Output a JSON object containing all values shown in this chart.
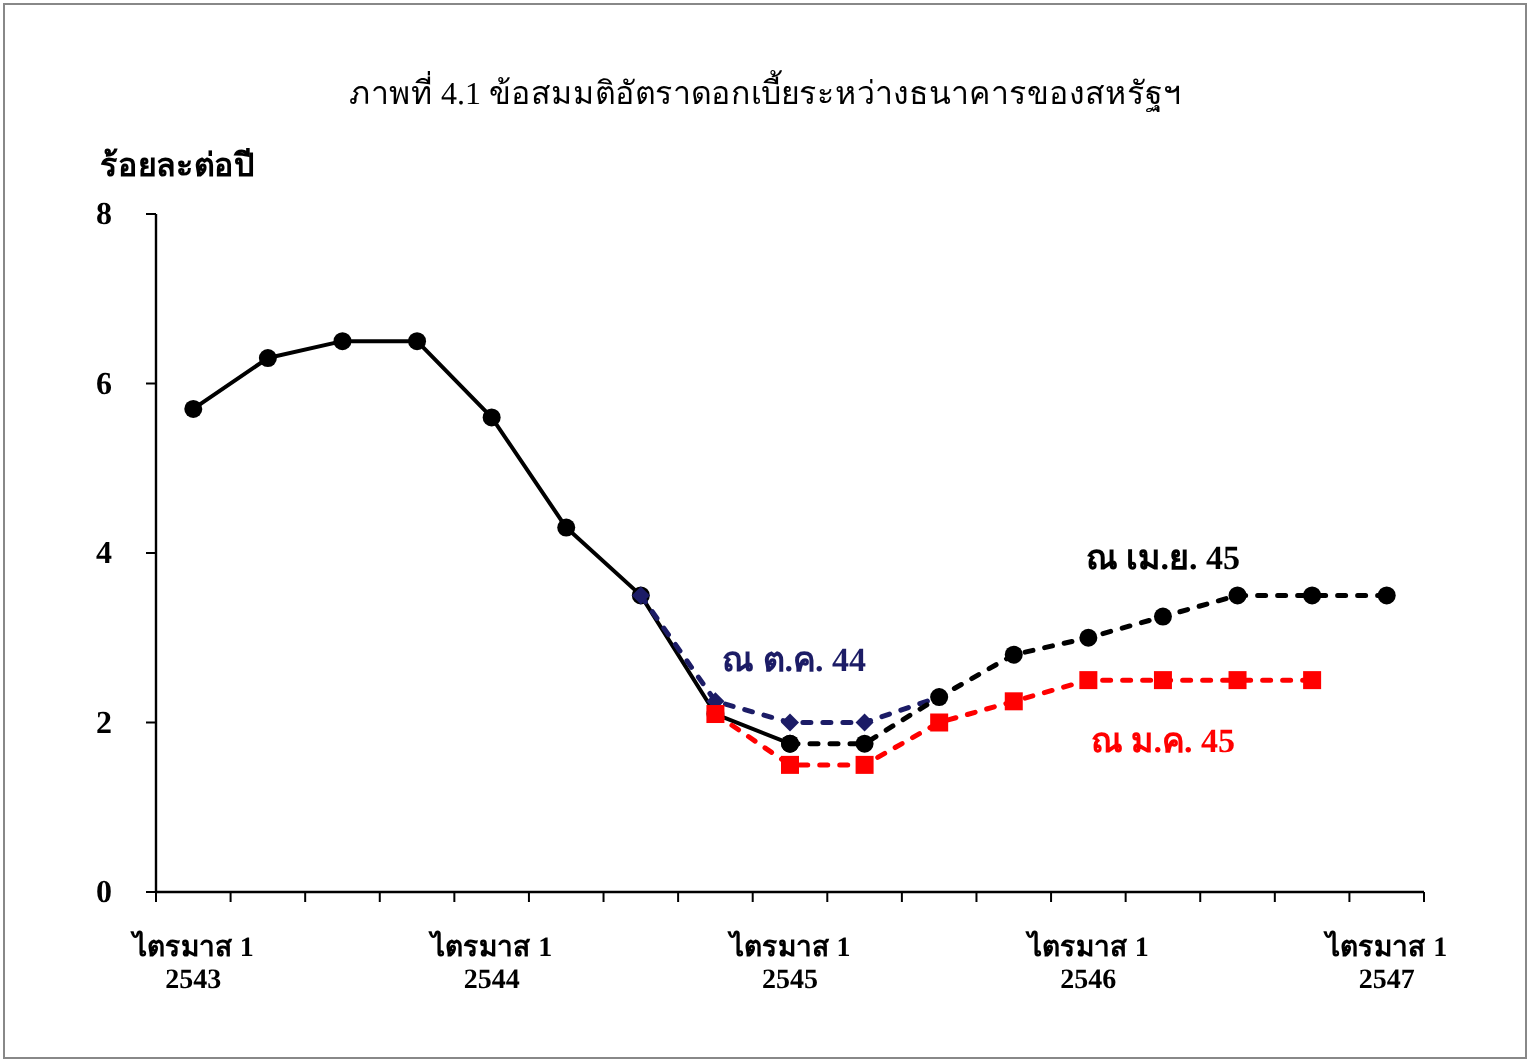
{
  "chart_data": {
    "type": "line",
    "title": "ภาพที่ 4.1  ข้อสมมติอัตราดอกเบี้ยระหว่างธนาคารของสหรัฐฯ",
    "ylabel": "ร้อยละต่อปี",
    "categories": [
      "ไตรมาส 1\n2543",
      null,
      null,
      null,
      "ไตรมาส 1\n2544",
      null,
      null,
      null,
      "ไตรมาส 1\n2545",
      null,
      null,
      null,
      "ไตรมาส 1\n2546",
      null,
      null,
      null,
      "ไตรมาส 1\n2547"
    ],
    "ylim": [
      0,
      8
    ],
    "yticks": [
      0,
      2,
      4,
      6,
      8
    ],
    "series": [
      {
        "color": "#000000",
        "marker": "circle",
        "line_style": "solid",
        "values": [
          5.7,
          6.3,
          6.5,
          6.5,
          5.6,
          4.3,
          3.5,
          2.1,
          1.75,
          null,
          null,
          null,
          null,
          null,
          null,
          null,
          null
        ]
      },
      {
        "name": "ณ ต.ค. 44",
        "color": "#1c1c66",
        "marker": "diamond",
        "line_style": "dotted",
        "values": [
          null,
          null,
          null,
          null,
          null,
          null,
          3.5,
          2.25,
          2.0,
          2.0,
          2.3,
          null,
          null,
          null,
          null,
          null,
          null
        ]
      },
      {
        "name": "ณ ม.ค. 45",
        "color": "#ff0000",
        "marker": "square",
        "line_style": "dotted",
        "values": [
          null,
          null,
          null,
          null,
          null,
          null,
          null,
          2.1,
          1.5,
          1.5,
          2.0,
          2.25,
          2.5,
          2.5,
          2.5,
          2.5,
          null
        ]
      },
      {
        "name": "ณ เม.ย. 45",
        "color": "#000000",
        "marker": "circle",
        "line_style": "dotted",
        "values": [
          null,
          null,
          null,
          null,
          null,
          null,
          null,
          null,
          1.75,
          1.75,
          2.3,
          2.8,
          3.0,
          3.25,
          3.5,
          3.5,
          3.5
        ]
      }
    ]
  }
}
